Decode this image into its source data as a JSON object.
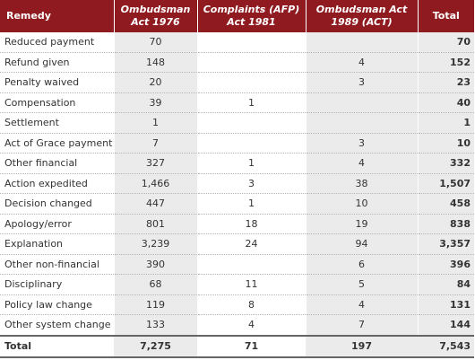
{
  "headers": {
    "remedy": "Remedy",
    "col_a": [
      "Ombudsman",
      "Act 1976"
    ],
    "col_b": [
      "Complaints (AFP)",
      "Act 1981"
    ],
    "col_c": [
      "Ombudsman Act",
      "1989 (ACT)"
    ],
    "total": "Total"
  },
  "rows": [
    {
      "remedy": "Reduced payment",
      "a": "70",
      "b": "",
      "c": "",
      "total": "70"
    },
    {
      "remedy": "Refund given",
      "a": "148",
      "b": "",
      "c": "4",
      "total": "152"
    },
    {
      "remedy": "Penalty waived",
      "a": "20",
      "b": "",
      "c": "3",
      "total": "23"
    },
    {
      "remedy": "Compensation",
      "a": "39",
      "b": "1",
      "c": "",
      "total": "40"
    },
    {
      "remedy": "Settlement",
      "a": "1",
      "b": "",
      "c": "",
      "total": "1"
    },
    {
      "remedy": "Act of Grace payment",
      "a": "7",
      "b": "",
      "c": "3",
      "total": "10"
    },
    {
      "remedy": "Other financial",
      "a": "327",
      "b": "1",
      "c": "4",
      "total": "332"
    },
    {
      "remedy": "Action expedited",
      "a": "1,466",
      "b": "3",
      "c": "38",
      "total": "1,507"
    },
    {
      "remedy": "Decision changed",
      "a": "447",
      "b": "1",
      "c": "10",
      "total": "458"
    },
    {
      "remedy": "Apology/error",
      "a": "801",
      "b": "18",
      "c": "19",
      "total": "838"
    },
    {
      "remedy": "Explanation",
      "a": "3,239",
      "b": "24",
      "c": "94",
      "total": "3,357"
    },
    {
      "remedy": "Other non-financial",
      "a": "390",
      "b": "",
      "c": "6",
      "total": "396"
    },
    {
      "remedy": "Disciplinary",
      "a": "68",
      "b": "11",
      "c": "5",
      "total": "84"
    },
    {
      "remedy": "Policy law change",
      "a": "119",
      "b": "8",
      "c": "4",
      "total": "131"
    },
    {
      "remedy": "Other system change",
      "a": "133",
      "b": "4",
      "c": "7",
      "total": "144"
    }
  ],
  "footer": {
    "remedy": "Total",
    "a": "7,275",
    "b": "71",
    "c": "197",
    "total": "7,543"
  },
  "colors": {
    "header_bg": "#8f1a1f",
    "shade_bg": "#ebebeb"
  }
}
